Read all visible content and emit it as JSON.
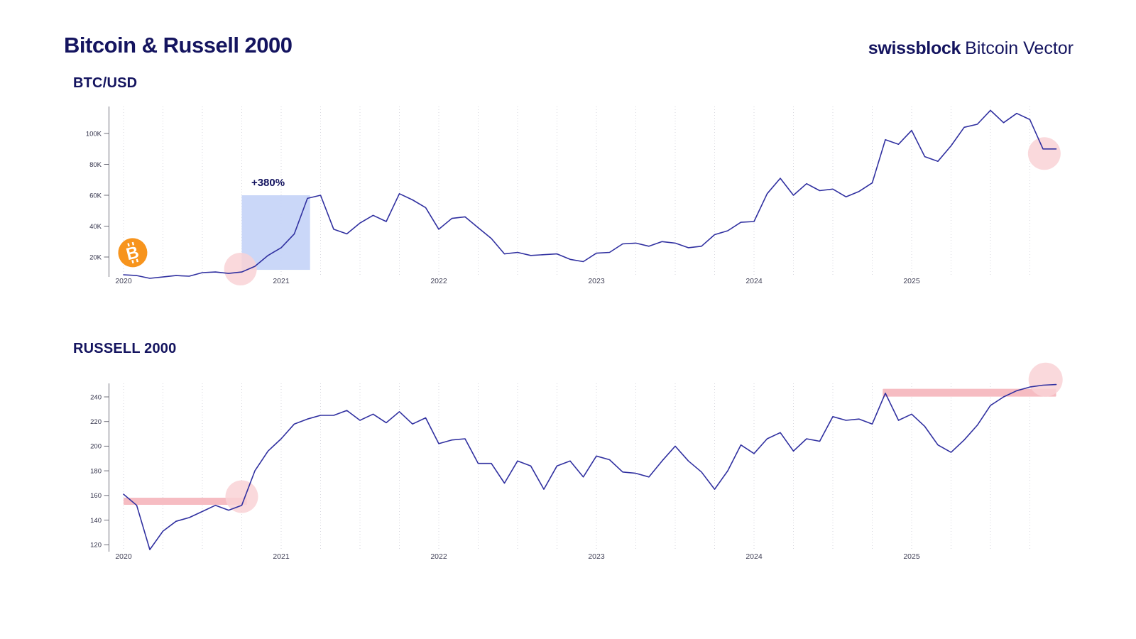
{
  "page": {
    "title": "Bitcoin & Russell 2000",
    "brand": {
      "name_bold": "swissblock",
      "name_regular": "Bitcoin Vector"
    }
  },
  "colors": {
    "navy_text": "#14145f",
    "line": "#3030a0",
    "grid": "#d6d6dd",
    "axis_line": "#6f6f7a",
    "tick_label": "#32324a",
    "year_label": "#3f3f55",
    "blue_box": "#c7d5f8",
    "pink_circle": "#f9d2d6",
    "pink_band": "#f5b8bf",
    "bitcoin_orange": "#f7941d",
    "background": "#ffffff"
  },
  "chart_data": [
    {
      "id": "btc",
      "type": "line",
      "title": "BTC/USD",
      "series_name": "Bitcoin price, monthly, USD thousands",
      "x_start": "2020-01",
      "x_step": "1 month",
      "x_tick_labels": [
        "2020",
        "2021",
        "2022",
        "2023",
        "2024",
        "2025"
      ],
      "y_ticks": [
        20,
        40,
        60,
        80,
        100
      ],
      "y_tick_labels": [
        "20K",
        "40K",
        "60K",
        "80K",
        "100K"
      ],
      "grid": "vertical-dotted-quarterly",
      "values": [
        8.5,
        8,
        6.2,
        7.1,
        8,
        7.6,
        9.9,
        10.3,
        9.4,
        10.3,
        14,
        21,
        26,
        35,
        58,
        60,
        38,
        35,
        42,
        47,
        43,
        61,
        57,
        52,
        38,
        45,
        46,
        39,
        32,
        22,
        23,
        21,
        21.5,
        22,
        18.5,
        17,
        22.5,
        23,
        28.5,
        29,
        27,
        30,
        29,
        26,
        27,
        34.5,
        37,
        42.5,
        43,
        61,
        71,
        60,
        67.5,
        63,
        64,
        59,
        62.5,
        68,
        96,
        93,
        102,
        85,
        82,
        92,
        104,
        106,
        115,
        107,
        113,
        109,
        90,
        90
      ],
      "annotations": {
        "gain_label": "+380%",
        "highlight_box": {
          "from_month": 9,
          "to_month": 14.2,
          "value_top": 60,
          "value_bottom": 11.7
        },
        "highlight_circles": [
          {
            "month": 8.9,
            "value": 12.2,
            "r": 23
          },
          {
            "month": 70.1,
            "value": 87,
            "r": 23
          }
        ],
        "bitcoin_icon": {
          "month": 0.7,
          "value": 22.8,
          "r": 20.5
        }
      }
    },
    {
      "id": "russell",
      "type": "line",
      "title": "RUSSELL 2000",
      "series_name": "Russell 2000 index, monthly",
      "x_start": "2020-01",
      "x_step": "1 month",
      "x_tick_labels": [
        "2020",
        "2021",
        "2022",
        "2023",
        "2024",
        "2025"
      ],
      "y_ticks": [
        120,
        140,
        160,
        180,
        200,
        220,
        240
      ],
      "y_tick_labels": [
        "120",
        "140",
        "160",
        "180",
        "200",
        "220",
        "240"
      ],
      "grid": "vertical-dotted-quarterly",
      "values": [
        161,
        152,
        116,
        131,
        139,
        142,
        147,
        152,
        148,
        152,
        180,
        196,
        206,
        218,
        222,
        225,
        225,
        229,
        221,
        226,
        219,
        228,
        218,
        223,
        202,
        205,
        206,
        186,
        186,
        170,
        188,
        184,
        165,
        184,
        188,
        175,
        192,
        189,
        179,
        178,
        175,
        188,
        200,
        188,
        179,
        165,
        180,
        201,
        194,
        206,
        211,
        196,
        206,
        204,
        224,
        221,
        222,
        218,
        243,
        221,
        226,
        216,
        201,
        195,
        205,
        217,
        233,
        240,
        245,
        248,
        249.5,
        250
      ],
      "annotations": {
        "support_bands": [
          {
            "from_month": 0,
            "to_month": 9.4,
            "value": 155.3,
            "px_thickness": 10
          },
          {
            "from_month": 57.8,
            "to_month": 71,
            "value": 243.4,
            "px_thickness": 11
          }
        ],
        "highlight_circles": [
          {
            "month": 9,
            "value": 159,
            "r": 23
          },
          {
            "month": 70.2,
            "value": 254,
            "r": 24
          }
        ]
      }
    }
  ]
}
